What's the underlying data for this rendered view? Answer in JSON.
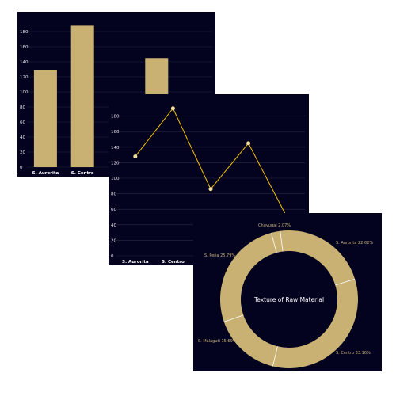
{
  "colors": {
    "background": "#03021f",
    "bar_fill": "#c9b173",
    "line_stroke": "#f5c400",
    "point_fill": "#f3dd9a",
    "donut_fill": "#c9b173",
    "separator": "#ffffff"
  },
  "chart_data": [
    {
      "type": "bar",
      "categories": [
        "S. Aurorita",
        "S. Centro",
        "",
        "",
        ""
      ],
      "values": [
        129,
        188,
        null,
        145,
        null
      ],
      "y_ticks": [
        "0",
        "20",
        "40",
        "60",
        "80",
        "100",
        "120",
        "140",
        "160",
        "180"
      ],
      "ylim": [
        0,
        200
      ],
      "grid": true
    },
    {
      "type": "line",
      "categories": [
        "S. Aurorita",
        "S. Centro",
        "",
        "",
        ""
      ],
      "values": [
        128,
        190,
        86,
        145,
        52
      ],
      "y_ticks": [
        "0",
        "20",
        "40",
        "60",
        "80",
        "100",
        "120",
        "140",
        "160",
        "180"
      ],
      "ylim": [
        0,
        200
      ],
      "grid": true
    },
    {
      "type": "pie",
      "donut": true,
      "title": "Texture of Raw Material",
      "slices": [
        {
          "label": "S. Aurorita 22.02%",
          "value": 22.02
        },
        {
          "label": "S. Centro 33.16%",
          "value": 33.16
        },
        {
          "label": "S. Malaguti 15.69%",
          "value": 15.69
        },
        {
          "label": "S. Peña 25.79%",
          "value": 25.79
        },
        {
          "label": "Chuyugal 2.07%",
          "value": 2.07
        }
      ]
    }
  ]
}
